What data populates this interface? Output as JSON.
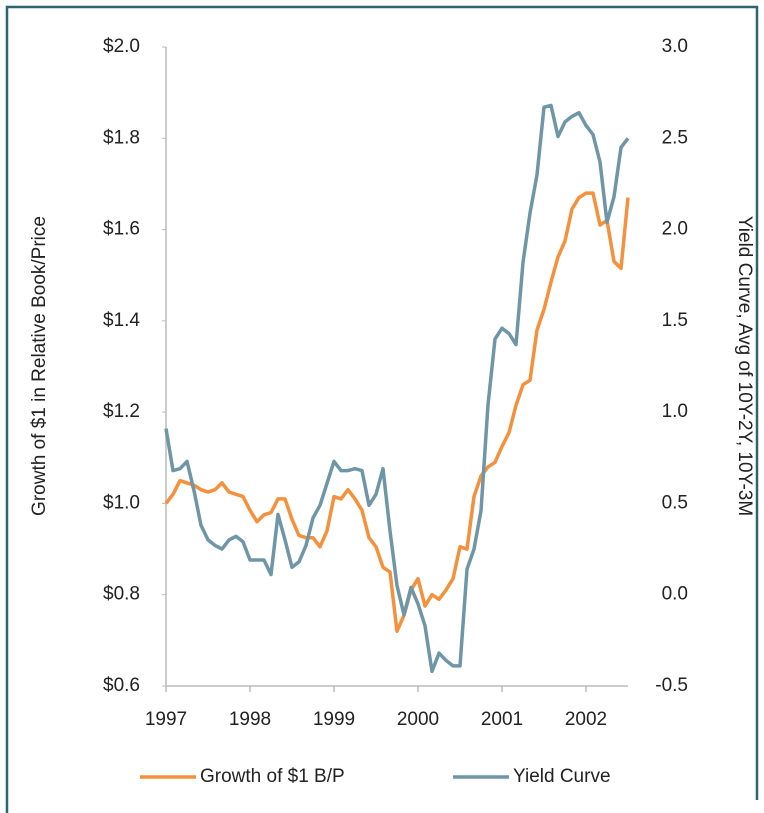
{
  "chart_data": {
    "type": "line",
    "y_label": "Growth of $1 in Relative Book/Price",
    "y2_label": "Yield Curve, Avg  of 10Y-2Y, 10Y-3M",
    "xlim": [
      1997,
      2002.5
    ],
    "xticks": [
      1997,
      1998,
      1999,
      2000,
      2001,
      2002
    ],
    "ylim": [
      0.6,
      2.0
    ],
    "yticks": [
      {
        "value": 0.6,
        "label": "$0.6"
      },
      {
        "value": 0.8,
        "label": "$0.8"
      },
      {
        "value": 1.0,
        "label": "$1.0"
      },
      {
        "value": 1.2,
        "label": "$1.2"
      },
      {
        "value": 1.4,
        "label": "$1.4"
      },
      {
        "value": 1.6,
        "label": "$1.6"
      },
      {
        "value": 1.8,
        "label": "$1.8"
      },
      {
        "value": 2.0,
        "label": "$2.0"
      }
    ],
    "y2lim": [
      -0.5,
      3.0
    ],
    "y2ticks": [
      -0.5,
      {
        "value": 0,
        "label": "0.0"
      },
      0.5,
      {
        "value": 1,
        "label": "1.0"
      },
      1.5,
      {
        "value": 2,
        "label": "2.0"
      },
      2.5,
      {
        "value": 3,
        "label": "3.0"
      }
    ],
    "grid": false,
    "legend": "bottom",
    "x": [
      1997,
      1997.083,
      1997.167,
      1997.25,
      1997.333,
      1997.417,
      1997.5,
      1997.583,
      1997.667,
      1997.75,
      1997.833,
      1997.917,
      1998,
      1998.083,
      1998.167,
      1998.25,
      1998.333,
      1998.417,
      1998.5,
      1998.583,
      1998.667,
      1998.75,
      1998.833,
      1998.917,
      1999,
      1999.083,
      1999.167,
      1999.25,
      1999.333,
      1999.417,
      1999.5,
      1999.583,
      1999.667,
      1999.75,
      1999.833,
      1999.917,
      2000,
      2000.083,
      2000.167,
      2000.25,
      2000.333,
      2000.417,
      2000.5,
      2000.583,
      2000.667,
      2000.75,
      2000.833,
      2000.917,
      2001,
      2001.083,
      2001.167,
      2001.25,
      2001.333,
      2001.417,
      2001.5,
      2001.583,
      2001.667,
      2001.75,
      2001.833,
      2001.917,
      2002,
      2002.083,
      2002.167,
      2002.25,
      2002.333,
      2002.417,
      2002.5
    ],
    "series": [
      {
        "name": "Growth of $1 B/P",
        "color": "#f5903c",
        "values": [
          1.0,
          1.02,
          1.05,
          1.045,
          1.04,
          1.03,
          1.025,
          1.03,
          1.045,
          1.025,
          1.02,
          1.015,
          0.985,
          0.96,
          0.975,
          0.98,
          1.01,
          1.01,
          0.965,
          0.93,
          0.925,
          0.925,
          0.905,
          0.94,
          1.015,
          1.01,
          1.03,
          1.01,
          0.985,
          0.925,
          0.905,
          0.86,
          0.85,
          0.72,
          0.755,
          0.81,
          0.835,
          0.775,
          0.8,
          0.79,
          0.81,
          0.835,
          0.905,
          0.9,
          1.015,
          1.06,
          1.08,
          1.09,
          1.125,
          1.155,
          1.215,
          1.26,
          1.27,
          1.38,
          1.425,
          1.485,
          1.54,
          1.575,
          1.645,
          1.67,
          1.68,
          1.68,
          1.61,
          1.62,
          1.53,
          1.515,
          1.67
        ]
      },
      {
        "name": "Yield Curve",
        "color": "#6f96a6",
        "axis": "y2",
        "values": [
          0.91,
          0.68,
          0.69,
          0.73,
          0.57,
          0.38,
          0.3,
          0.27,
          0.25,
          0.3,
          0.32,
          0.29,
          0.19,
          0.19,
          0.19,
          0.11,
          0.44,
          0.3,
          0.15,
          0.18,
          0.27,
          0.42,
          0.49,
          0.61,
          0.73,
          0.68,
          0.68,
          0.69,
          0.68,
          0.49,
          0.55,
          0.69,
          0.35,
          0.05,
          -0.11,
          0.04,
          -0.05,
          -0.17,
          -0.42,
          -0.32,
          -0.36,
          -0.39,
          -0.39,
          0.14,
          0.25,
          0.46,
          1.04,
          1.4,
          1.46,
          1.43,
          1.37,
          1.82,
          2.09,
          2.3,
          2.67,
          2.68,
          2.51,
          2.59,
          2.62,
          2.64,
          2.57,
          2.52,
          2.37,
          2.04,
          2.18,
          2.45,
          2.5
        ]
      }
    ]
  }
}
